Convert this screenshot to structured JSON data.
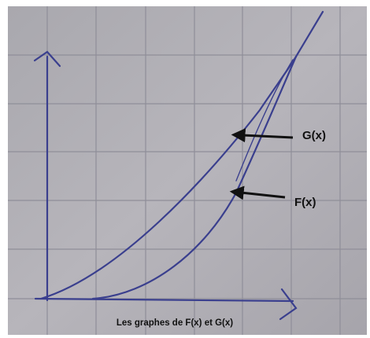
{
  "labels": {
    "g": "G(x)",
    "f": "F(x)"
  },
  "caption": "Les graphes de F(x) et G(x)"
}
